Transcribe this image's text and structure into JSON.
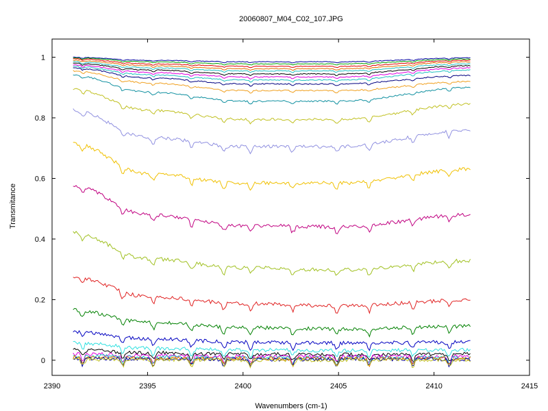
{
  "chart_data": {
    "type": "line",
    "title": "20060807_M04_C02_107.JPG",
    "xlabel": "Wavenumbers (cm-1)",
    "ylabel": "Transmitance",
    "xlim": [
      2390,
      2415
    ],
    "ylim": [
      -0.05,
      1.06
    ],
    "xticks": [
      "2390",
      "2395",
      "2400",
      "2405",
      "2410",
      "2415"
    ],
    "yticks": [
      "0",
      "0.2",
      "0.4",
      "0.6",
      "0.8",
      "1"
    ],
    "x_range": [
      2391.1,
      2411.9
    ],
    "grid": false,
    "series": [
      {
        "color": "#0000a0",
        "values": [
          {
            "x": 2391.1,
            "y": 1.0
          },
          {
            "x": 2395,
            "y": 0.99
          },
          {
            "x": 2400,
            "y": 0.985
          },
          {
            "x": 2405,
            "y": 0.985
          },
          {
            "x": 2411.9,
            "y": 0.998
          }
        ]
      },
      {
        "color": "#00a000",
        "values": [
          {
            "x": 2391.1,
            "y": 0.998
          },
          {
            "x": 2395,
            "y": 0.985
          },
          {
            "x": 2400,
            "y": 0.978
          },
          {
            "x": 2405,
            "y": 0.978
          },
          {
            "x": 2411.9,
            "y": 0.994
          }
        ]
      },
      {
        "color": "#e00000",
        "values": [
          {
            "x": 2391.1,
            "y": 0.995
          },
          {
            "x": 2395,
            "y": 0.978
          },
          {
            "x": 2400,
            "y": 0.97
          },
          {
            "x": 2405,
            "y": 0.97
          },
          {
            "x": 2411.9,
            "y": 0.99
          }
        ]
      },
      {
        "color": "#e07000",
        "values": [
          {
            "x": 2391.1,
            "y": 0.99
          },
          {
            "x": 2395,
            "y": 0.972
          },
          {
            "x": 2400,
            "y": 0.962
          },
          {
            "x": 2405,
            "y": 0.962
          },
          {
            "x": 2411.9,
            "y": 0.985
          }
        ]
      },
      {
        "color": "#20c0c0",
        "values": [
          {
            "x": 2391.1,
            "y": 0.985
          },
          {
            "x": 2395,
            "y": 0.965
          },
          {
            "x": 2400,
            "y": 0.955
          },
          {
            "x": 2405,
            "y": 0.955
          },
          {
            "x": 2411.9,
            "y": 0.978
          }
        ]
      },
      {
        "color": "#000000",
        "values": [
          {
            "x": 2391.1,
            "y": 0.98
          },
          {
            "x": 2395,
            "y": 0.958
          },
          {
            "x": 2400,
            "y": 0.945
          },
          {
            "x": 2405,
            "y": 0.945
          },
          {
            "x": 2411.9,
            "y": 0.972
          }
        ]
      },
      {
        "color": "#e000e0",
        "values": [
          {
            "x": 2391.1,
            "y": 0.975
          },
          {
            "x": 2395,
            "y": 0.95
          },
          {
            "x": 2400,
            "y": 0.935
          },
          {
            "x": 2405,
            "y": 0.935
          },
          {
            "x": 2411.9,
            "y": 0.965
          }
        ]
      },
      {
        "color": "#20c0c0",
        "values": [
          {
            "x": 2391.1,
            "y": 0.97
          },
          {
            "x": 2395,
            "y": 0.942
          },
          {
            "x": 2400,
            "y": 0.925
          },
          {
            "x": 2405,
            "y": 0.925
          },
          {
            "x": 2411.9,
            "y": 0.958
          }
        ]
      },
      {
        "color": "#000080",
        "values": [
          {
            "x": 2391.1,
            "y": 0.965
          },
          {
            "x": 2395,
            "y": 0.932
          },
          {
            "x": 2400,
            "y": 0.912
          },
          {
            "x": 2405,
            "y": 0.912
          },
          {
            "x": 2411.9,
            "y": 0.94
          }
        ]
      },
      {
        "color": "#f0a020",
        "values": [
          {
            "x": 2391.1,
            "y": 0.955
          },
          {
            "x": 2395,
            "y": 0.915
          },
          {
            "x": 2400,
            "y": 0.89
          },
          {
            "x": 2405,
            "y": 0.89
          },
          {
            "x": 2411.9,
            "y": 0.92
          }
        ]
      },
      {
        "color": "#1090a0",
        "values": [
          {
            "x": 2391.1,
            "y": 0.94
          },
          {
            "x": 2395,
            "y": 0.885
          },
          {
            "x": 2400,
            "y": 0.855
          },
          {
            "x": 2405,
            "y": 0.855
          },
          {
            "x": 2411.9,
            "y": 0.9
          }
        ]
      },
      {
        "color": "#c0c020",
        "values": [
          {
            "x": 2391.1,
            "y": 0.895
          },
          {
            "x": 2395,
            "y": 0.825
          },
          {
            "x": 2400,
            "y": 0.795
          },
          {
            "x": 2405,
            "y": 0.795
          },
          {
            "x": 2411.9,
            "y": 0.845
          }
        ]
      },
      {
        "color": "#9090e0",
        "values": [
          {
            "x": 2391.1,
            "y": 0.825
          },
          {
            "x": 2395,
            "y": 0.735
          },
          {
            "x": 2400,
            "y": 0.705
          },
          {
            "x": 2405,
            "y": 0.705
          },
          {
            "x": 2411.9,
            "y": 0.76
          }
        ]
      },
      {
        "color": "#f0c000",
        "values": [
          {
            "x": 2391.1,
            "y": 0.715
          },
          {
            "x": 2395,
            "y": 0.615
          },
          {
            "x": 2400,
            "y": 0.585
          },
          {
            "x": 2405,
            "y": 0.585
          },
          {
            "x": 2411.9,
            "y": 0.63
          }
        ]
      },
      {
        "color": "#c00080",
        "values": [
          {
            "x": 2391.1,
            "y": 0.575
          },
          {
            "x": 2395,
            "y": 0.48
          },
          {
            "x": 2400,
            "y": 0.445
          },
          {
            "x": 2405,
            "y": 0.44
          },
          {
            "x": 2411.9,
            "y": 0.48
          }
        ]
      },
      {
        "color": "#a0c020",
        "values": [
          {
            "x": 2391.1,
            "y": 0.42
          },
          {
            "x": 2395,
            "y": 0.335
          },
          {
            "x": 2400,
            "y": 0.305
          },
          {
            "x": 2405,
            "y": 0.298
          },
          {
            "x": 2411.9,
            "y": 0.328
          }
        ]
      },
      {
        "color": "#e02020",
        "values": [
          {
            "x": 2391.1,
            "y": 0.275
          },
          {
            "x": 2395,
            "y": 0.21
          },
          {
            "x": 2400,
            "y": 0.187
          },
          {
            "x": 2405,
            "y": 0.18
          },
          {
            "x": 2411.9,
            "y": 0.198
          }
        ]
      },
      {
        "color": "#008000",
        "values": [
          {
            "x": 2391.1,
            "y": 0.165
          },
          {
            "x": 2395,
            "y": 0.125
          },
          {
            "x": 2400,
            "y": 0.108
          },
          {
            "x": 2405,
            "y": 0.103
          },
          {
            "x": 2411.9,
            "y": 0.112
          }
        ]
      },
      {
        "color": "#0000c0",
        "values": [
          {
            "x": 2391.1,
            "y": 0.095
          },
          {
            "x": 2395,
            "y": 0.07
          },
          {
            "x": 2400,
            "y": 0.06
          },
          {
            "x": 2405,
            "y": 0.057
          },
          {
            "x": 2411.9,
            "y": 0.06
          }
        ]
      },
      {
        "color": "#30e0e0",
        "values": [
          {
            "x": 2391.1,
            "y": 0.058
          },
          {
            "x": 2395,
            "y": 0.04
          },
          {
            "x": 2400,
            "y": 0.034
          },
          {
            "x": 2405,
            "y": 0.032
          },
          {
            "x": 2411.9,
            "y": 0.034
          }
        ]
      },
      {
        "color": "#000000",
        "values": [
          {
            "x": 2391.1,
            "y": 0.035
          },
          {
            "x": 2395,
            "y": 0.024
          },
          {
            "x": 2400,
            "y": 0.02
          },
          {
            "x": 2405,
            "y": 0.019
          },
          {
            "x": 2411.9,
            "y": 0.02
          }
        ]
      },
      {
        "color": "#e000e0",
        "values": [
          {
            "x": 2391.1,
            "y": 0.022
          },
          {
            "x": 2395,
            "y": 0.015
          },
          {
            "x": 2400,
            "y": 0.013
          },
          {
            "x": 2405,
            "y": 0.012
          },
          {
            "x": 2411.9,
            "y": 0.013
          }
        ]
      },
      {
        "color": "#20c0c0",
        "values": [
          {
            "x": 2391.1,
            "y": 0.015
          },
          {
            "x": 2395,
            "y": 0.01
          },
          {
            "x": 2400,
            "y": 0.009
          },
          {
            "x": 2405,
            "y": 0.008
          },
          {
            "x": 2411.9,
            "y": 0.009
          }
        ]
      },
      {
        "color": "#e07000",
        "values": [
          {
            "x": 2391.1,
            "y": 0.01
          },
          {
            "x": 2395,
            "y": 0.007
          },
          {
            "x": 2400,
            "y": 0.006
          },
          {
            "x": 2405,
            "y": 0.005
          },
          {
            "x": 2411.9,
            "y": 0.006
          }
        ]
      },
      {
        "color": "#0000a0",
        "values": [
          {
            "x": 2391.1,
            "y": 0.006
          },
          {
            "x": 2395,
            "y": 0.004
          },
          {
            "x": 2400,
            "y": 0.003
          },
          {
            "x": 2405,
            "y": 0.003
          },
          {
            "x": 2411.9,
            "y": 0.003
          }
        ]
      },
      {
        "color": "#c0c020",
        "values": [
          {
            "x": 2391.1,
            "y": 0.003
          },
          {
            "x": 2395,
            "y": 0.002
          },
          {
            "x": 2400,
            "y": 0.001
          },
          {
            "x": 2405,
            "y": 0.001
          },
          {
            "x": 2411.9,
            "y": 0.001
          }
        ]
      }
    ]
  }
}
